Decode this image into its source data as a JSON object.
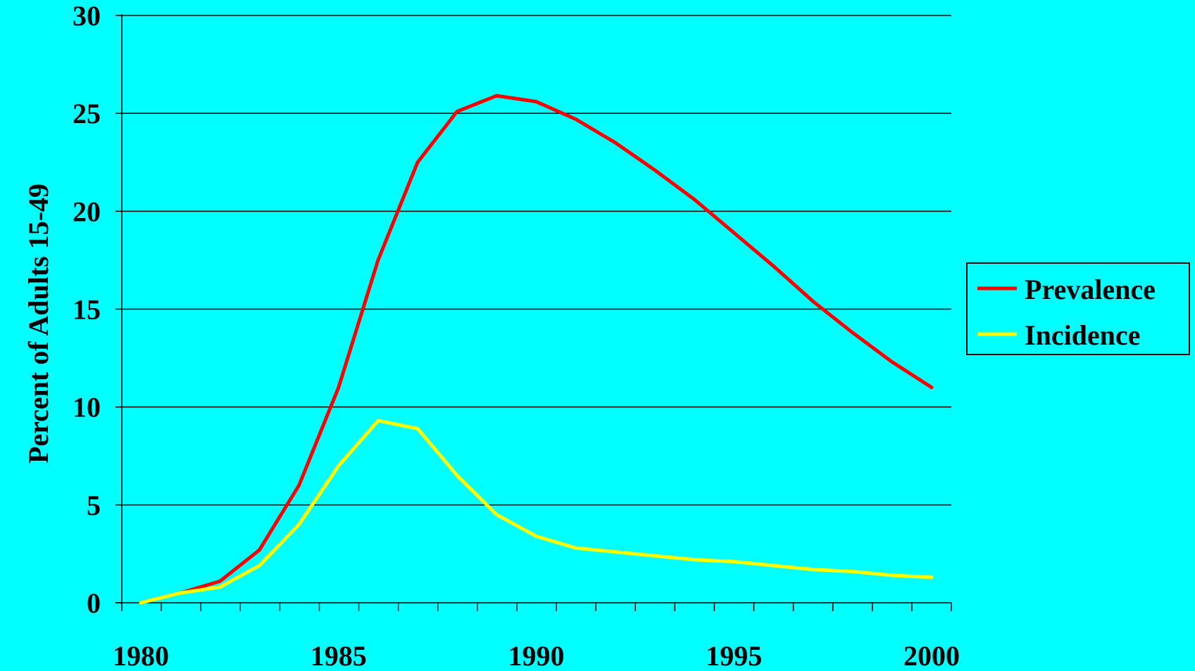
{
  "chart_data": {
    "type": "line",
    "title": "",
    "xlabel": "",
    "ylabel": "Percent of Adults 15-49",
    "xlim": [
      1980,
      2000
    ],
    "ylim": [
      0,
      30
    ],
    "x_ticks": [
      "1980",
      "1985",
      "1990",
      "1995",
      "2000"
    ],
    "y_ticks": [
      "0",
      "5",
      "10",
      "15",
      "20",
      "25",
      "30"
    ],
    "grid": "horizontal",
    "legend_position": "right",
    "background": "#00FFFF",
    "x": [
      1980,
      1981,
      1982,
      1983,
      1984,
      1985,
      1986,
      1987,
      1988,
      1989,
      1990,
      1991,
      1992,
      1993,
      1994,
      1995,
      1996,
      1997,
      1998,
      1999,
      2000
    ],
    "series": [
      {
        "name": "Prevalence",
        "color": "#FF0000",
        "values": [
          0,
          0.5,
          1.1,
          2.7,
          6.0,
          11.0,
          17.5,
          22.5,
          25.1,
          25.9,
          25.6,
          24.7,
          23.5,
          22.1,
          20.6,
          18.9,
          17.2,
          15.4,
          13.8,
          12.3,
          11.0
        ]
      },
      {
        "name": "Incidence",
        "color": "#FFFF00",
        "values": [
          0,
          0.5,
          0.8,
          1.9,
          4.0,
          7.0,
          9.3,
          8.9,
          6.5,
          4.5,
          3.4,
          2.8,
          2.6,
          2.4,
          2.2,
          2.1,
          1.9,
          1.7,
          1.6,
          1.4,
          1.3
        ]
      }
    ]
  }
}
